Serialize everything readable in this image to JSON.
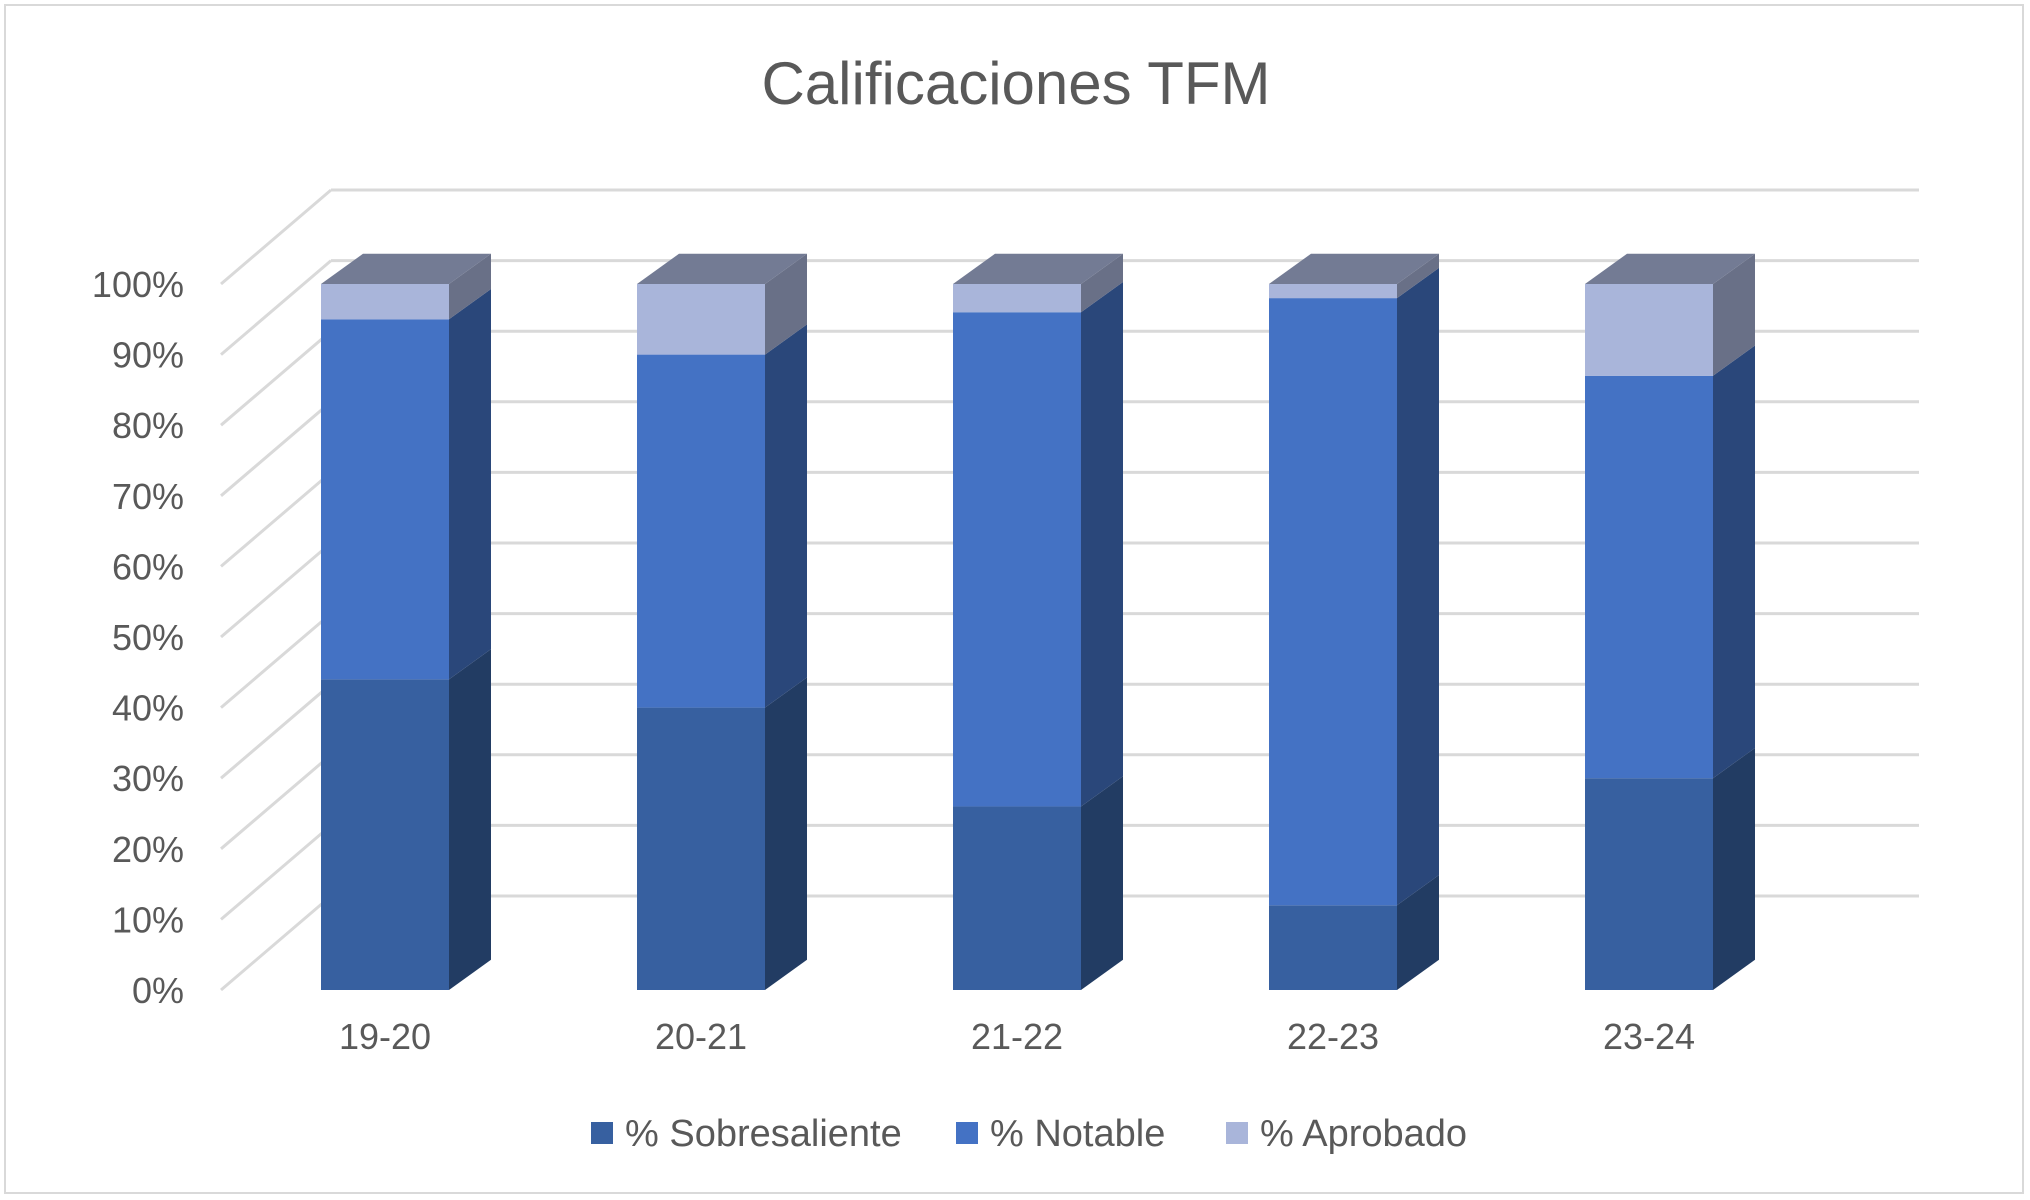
{
  "chart_data": {
    "type": "bar",
    "stacked": true,
    "three_d": true,
    "title": "Calificaciones TFM",
    "categories": [
      "19-20",
      "20-21",
      "21-22",
      "22-23",
      "23-24"
    ],
    "series": [
      {
        "name": "% Sobresaliente",
        "values": [
          44,
          40,
          26,
          12,
          30
        ],
        "color": "#3760a0"
      },
      {
        "name": "% Notable",
        "values": [
          51,
          50,
          70,
          86,
          57
        ],
        "color": "#4472c4"
      },
      {
        "name": "% Aprobado",
        "values": [
          5,
          10,
          4,
          2,
          13
        ],
        "color": "#a9b5da"
      }
    ],
    "y_ticks": [
      "0%",
      "10%",
      "20%",
      "30%",
      "40%",
      "50%",
      "60%",
      "70%",
      "80%",
      "90%",
      "100%"
    ],
    "ylim": [
      0,
      100
    ],
    "grid": true,
    "legend": "bottom"
  }
}
